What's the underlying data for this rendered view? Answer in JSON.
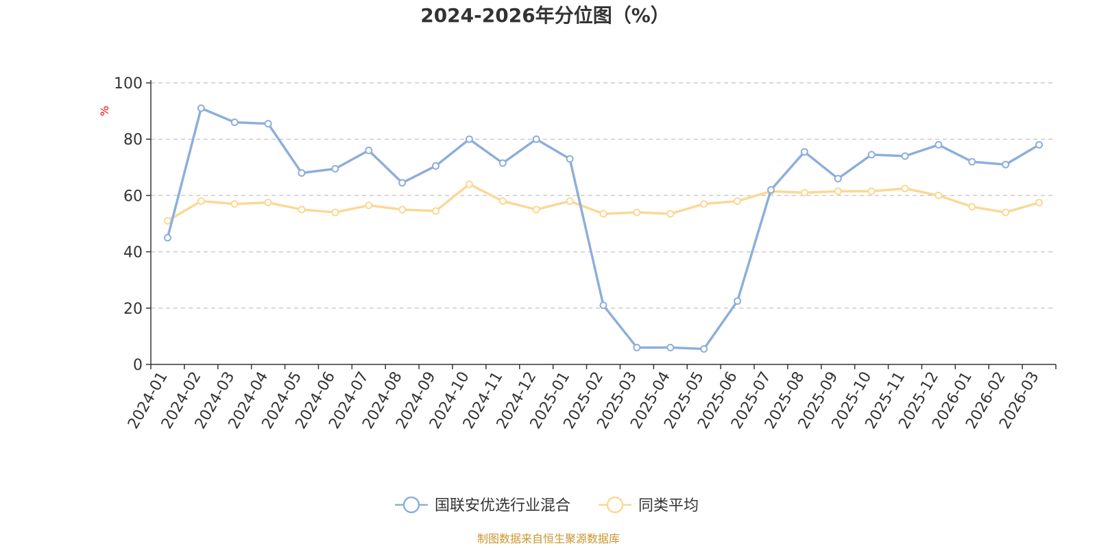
{
  "chart_data": {
    "type": "line",
    "title": "2024-2026年分位图（%）",
    "ylabel": "%",
    "xlabel": "",
    "ylim": [
      0,
      100
    ],
    "yticks": [
      0,
      20,
      40,
      60,
      80,
      100
    ],
    "grid": true,
    "legend_position": "bottom-center",
    "categories": [
      "2024-01",
      "2024-02",
      "2024-03",
      "2024-04",
      "2024-05",
      "2024-06",
      "2024-07",
      "2024-08",
      "2024-09",
      "2024-10",
      "2024-11",
      "2024-12",
      "2025-01",
      "2025-02",
      "2025-03",
      "2025-04",
      "2025-05",
      "2025-06",
      "2025-07",
      "2025-08",
      "2025-09",
      "2025-10",
      "2025-11",
      "2025-12",
      "2026-01",
      "2026-02",
      "2026-03"
    ],
    "series": [
      {
        "name": "国联安优选行业混合",
        "color": "#8DAEDB",
        "values": [
          45,
          91,
          86,
          85.5,
          68,
          69.5,
          76,
          64.5,
          70.5,
          80,
          71.5,
          80,
          73,
          21,
          6,
          6,
          5.5,
          22.5,
          62,
          75.5,
          66,
          74.5,
          74,
          78,
          72,
          71,
          78
        ]
      },
      {
        "name": "同类平均",
        "color": "#FAD895",
        "values": [
          51,
          58,
          57,
          57.5,
          55,
          54,
          56.5,
          55,
          54.5,
          64,
          58,
          55,
          58,
          53.5,
          54,
          53.5,
          57,
          58,
          61.5,
          61,
          61.5,
          61.5,
          62.5,
          60,
          56,
          54,
          57.5
        ]
      }
    ]
  },
  "source_text": "制图数据来自恒生聚源数据库",
  "colors": {
    "axis": "#333333",
    "grid": "#cccccc",
    "unit_label": "#ff0000",
    "source": "#c8962e"
  }
}
